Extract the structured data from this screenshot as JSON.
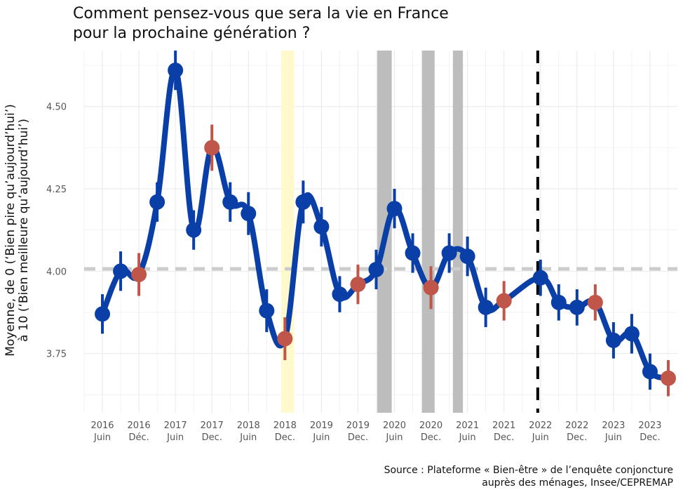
{
  "title": {
    "line1": "Comment pensez-vous que sera la vie en France",
    "line2": "pour la prochaine génération ?"
  },
  "ylabel": {
    "line1": "Moyenne, de 0 (‘Bien pire qu’aujourd’hui’)",
    "line2": "à 10 (‘Bien meilleure qu’aujourd’hui’)"
  },
  "source": {
    "line1": "Source : Plateforme « Bien-être » de l’enquête conjoncture",
    "line2": "auprès des ménages, Insee/CEPREMAP"
  },
  "colors": {
    "line": "#0a3fa8",
    "point_main": "#0a3fa8",
    "point_december": "#c0554a",
    "band_yellow": "#fff9cc",
    "band_grey": "#bdbdbd",
    "reference_line": "#cccccc",
    "event_line": "#000000",
    "grid": "#ebebeb"
  },
  "chart_data": {
    "type": "line",
    "ylim": [
      3.57,
      4.67
    ],
    "y_ticks": [
      3.75,
      4.0,
      4.25,
      4.5
    ],
    "y_tick_labels": [
      "3.75",
      "4.00",
      "4.25",
      "4.50"
    ],
    "x_tick_labels": [
      [
        "2016",
        "Juin"
      ],
      [
        "2016",
        "Déc."
      ],
      [
        "2017",
        "Juin"
      ],
      [
        "2017",
        "Dec."
      ],
      [
        "2018",
        "Juin"
      ],
      [
        "2018",
        "Dec."
      ],
      [
        "2019",
        "Juin"
      ],
      [
        "2019",
        "Dec."
      ],
      [
        "2020",
        "Juin"
      ],
      [
        "2020",
        "Dec."
      ],
      [
        "2021",
        "Juin"
      ],
      [
        "2021",
        "Dec."
      ],
      [
        "2022",
        "Juin"
      ],
      [
        "2022",
        "Dec."
      ],
      [
        "2023",
        "Juin"
      ],
      [
        "2023",
        "Dec."
      ]
    ],
    "x_tick_positions": [
      0,
      2,
      4,
      6,
      8,
      10,
      12,
      14,
      16,
      18,
      20,
      22,
      24,
      26,
      28,
      30
    ],
    "xlim": [
      -1,
      31.5
    ],
    "reference_value": 4.007,
    "vertical_event_x": 23.85,
    "bands": [
      {
        "kind": "yellow",
        "x0": 9.8,
        "x1": 10.5
      },
      {
        "kind": "grey",
        "x0": 15.05,
        "x1": 15.85
      },
      {
        "kind": "grey",
        "x0": 17.5,
        "x1": 18.2
      },
      {
        "kind": "grey",
        "x0": 19.2,
        "x1": 19.75
      }
    ],
    "series": [
      {
        "points": [
          {
            "x": 0,
            "y": 3.87,
            "err": 0.06,
            "kind": "main"
          },
          {
            "x": 1,
            "y": 4.0,
            "err": 0.06,
            "kind": "main"
          },
          {
            "x": 2,
            "y": 3.99,
            "err": 0.065,
            "kind": "december"
          },
          {
            "x": 3,
            "y": 4.21,
            "err": 0.06,
            "kind": "main"
          },
          {
            "x": 4,
            "y": 4.61,
            "err": 0.06,
            "kind": "main"
          },
          {
            "x": 5,
            "y": 4.125,
            "err": 0.06,
            "kind": "main"
          },
          {
            "x": 6,
            "y": 4.375,
            "err": 0.07,
            "kind": "december"
          },
          {
            "x": 7,
            "y": 4.21,
            "err": 0.06,
            "kind": "main"
          },
          {
            "x": 8,
            "y": 4.175,
            "err": 0.065,
            "kind": "main"
          },
          {
            "x": 9,
            "y": 3.88,
            "err": 0.065,
            "kind": "main"
          },
          {
            "x": 10,
            "y": 3.795,
            "err": 0.065,
            "kind": "december"
          },
          {
            "x": 11,
            "y": 4.21,
            "err": 0.065,
            "kind": "main"
          },
          {
            "x": 12,
            "y": 4.135,
            "err": 0.06,
            "kind": "main"
          },
          {
            "x": 13,
            "y": 3.93,
            "err": 0.055,
            "kind": "main"
          },
          {
            "x": 14,
            "y": 3.96,
            "err": 0.06,
            "kind": "december"
          },
          {
            "x": 15,
            "y": 4.005,
            "err": 0.06,
            "kind": "main"
          },
          {
            "x": 16,
            "y": 4.19,
            "err": 0.06,
            "kind": "main"
          },
          {
            "x": 17,
            "y": 4.055,
            "err": 0.06,
            "kind": "main"
          },
          {
            "x": 18,
            "y": 3.95,
            "err": 0.065,
            "kind": "december"
          },
          {
            "x": 19,
            "y": 4.055,
            "err": 0.06,
            "kind": "main"
          },
          {
            "x": 20,
            "y": 4.045,
            "err": 0.06,
            "kind": "main"
          },
          {
            "x": 21,
            "y": 3.89,
            "err": 0.06,
            "kind": "main"
          },
          {
            "x": 22,
            "y": 3.91,
            "err": 0.06,
            "kind": "december"
          },
          {
            "x": 24,
            "y": 3.98,
            "err": 0.055,
            "kind": "main"
          },
          {
            "x": 25,
            "y": 3.905,
            "err": 0.055,
            "kind": "main"
          },
          {
            "x": 26,
            "y": 3.89,
            "err": 0.055,
            "kind": "main"
          },
          {
            "x": 27,
            "y": 3.905,
            "err": 0.055,
            "kind": "december"
          },
          {
            "x": 28,
            "y": 3.79,
            "err": 0.055,
            "kind": "main"
          },
          {
            "x": 29,
            "y": 3.81,
            "err": 0.06,
            "kind": "main"
          },
          {
            "x": 30,
            "y": 3.695,
            "err": 0.055,
            "kind": "main"
          },
          {
            "x": 31,
            "y": 3.675,
            "err": 0.055,
            "kind": "december"
          }
        ]
      }
    ]
  }
}
